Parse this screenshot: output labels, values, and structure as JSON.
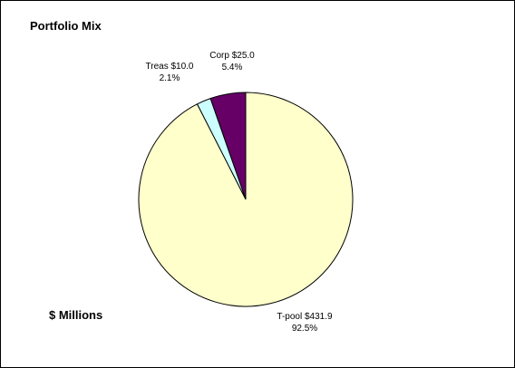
{
  "chart_data": {
    "type": "pie",
    "title": "Portfolio Mix",
    "unit_label": "$ Millions",
    "slices": [
      {
        "label": "Corp $25.0",
        "name": "Corp",
        "value": 25.0,
        "percent": "5.4%",
        "color": "#660066"
      },
      {
        "label": "Treas $10.0",
        "name": "Treas",
        "value": 10.0,
        "percent": "2.1%",
        "color": "#ccffff"
      },
      {
        "label": "T-pool $431.9",
        "name": "T-pool",
        "value": 431.9,
        "percent": "92.5%",
        "color": "#ffffcc"
      }
    ],
    "slice_outline_color": "#000000",
    "start_angle_deg": 0,
    "direction": "counterclockwise"
  }
}
